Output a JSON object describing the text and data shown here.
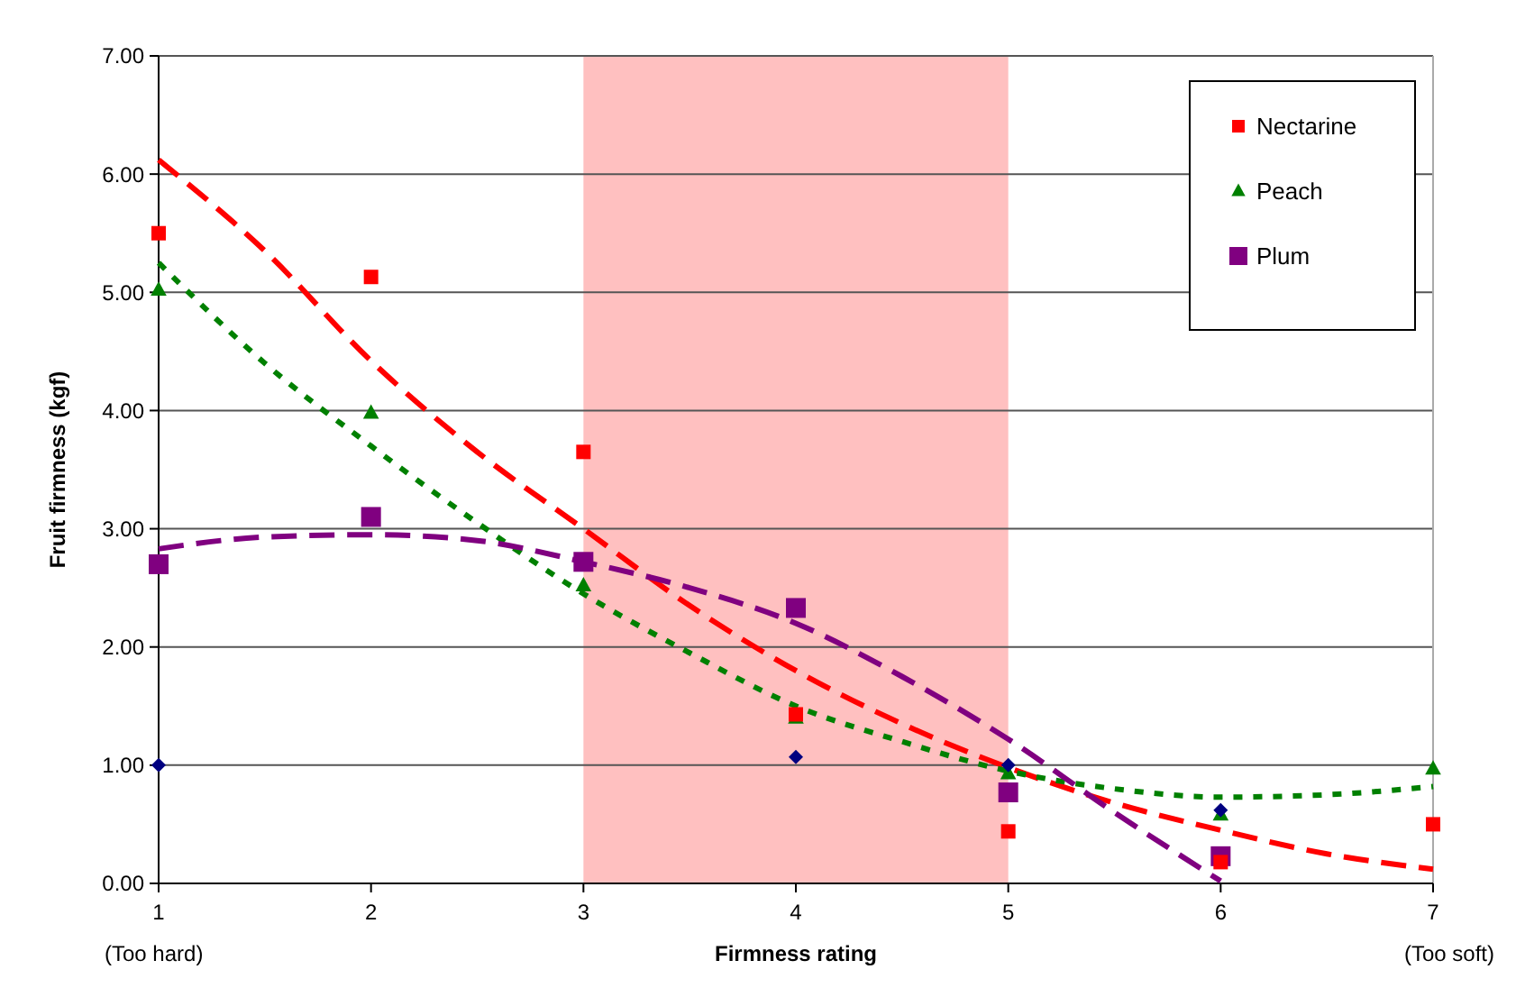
{
  "chart_data": {
    "type": "scatter",
    "xlabel": "Firmness rating",
    "ylabel": "Fruit firmness (kgf)",
    "xlim": [
      1,
      7
    ],
    "ylim": [
      0,
      7
    ],
    "xticks": [
      1,
      2,
      3,
      4,
      5,
      6,
      7
    ],
    "yticks": [
      {
        "value": 0,
        "label": "0.00"
      },
      {
        "value": 1,
        "label": "1.00"
      },
      {
        "value": 2,
        "label": "2.00"
      },
      {
        "value": 3,
        "label": "3.00"
      },
      {
        "value": 4,
        "label": "4.00"
      },
      {
        "value": 5,
        "label": "5.00"
      },
      {
        "value": 6,
        "label": "6.00"
      },
      {
        "value": 7,
        "label": "7.00"
      }
    ],
    "grid": "y",
    "legend": "top right",
    "bands": [
      {
        "axis": "x",
        "from": 3,
        "to": 5,
        "color": "#ffc0c0"
      }
    ],
    "annotations": [
      "(Too hard)",
      "(Too soft)"
    ],
    "series": [
      {
        "type": "line",
        "color": "#ff0000",
        "line_style": "dashed",
        "marker": "none",
        "x": [
          1,
          1.5,
          2,
          2.5,
          3,
          3.5,
          4,
          4.5,
          5,
          5.5,
          6,
          6.5,
          7
        ],
        "values": [
          6.12,
          5.35,
          4.42,
          3.65,
          3.0,
          2.35,
          1.8,
          1.35,
          0.98,
          0.68,
          0.45,
          0.25,
          0.12
        ]
      },
      {
        "type": "line",
        "color": "#008000",
        "line_style": "dotted",
        "marker": "none",
        "x": [
          1,
          1.5,
          2,
          2.5,
          3,
          3.5,
          4,
          4.5,
          5,
          5.5,
          6,
          6.5,
          7
        ],
        "values": [
          5.25,
          4.4,
          3.7,
          3.05,
          2.45,
          1.95,
          1.5,
          1.2,
          0.95,
          0.8,
          0.73,
          0.75,
          0.82
        ]
      },
      {
        "type": "line",
        "color": "#800080",
        "line_style": "dashed",
        "marker": "none",
        "x": [
          1,
          1.5,
          2,
          2.5,
          3,
          3.5,
          4,
          4.5,
          5,
          5.5,
          6
        ],
        "values": [
          2.83,
          2.93,
          2.95,
          2.9,
          2.72,
          2.5,
          2.2,
          1.75,
          1.22,
          0.6,
          0.02
        ]
      },
      {
        "color": "#000080",
        "marker": "diamond",
        "x": [
          1,
          4,
          5,
          6
        ],
        "values": [
          1.0,
          1.07,
          1.0,
          0.62
        ]
      },
      {
        "name": "Nectarine",
        "color": "#ff0000",
        "marker": "square",
        "x": [
          1,
          2,
          3,
          4,
          5,
          6,
          7
        ],
        "values": [
          5.5,
          5.13,
          3.65,
          1.43,
          0.44,
          0.18,
          0.5
        ]
      },
      {
        "name": "Peach",
        "color": "#008000",
        "marker": "triangle",
        "x": [
          1,
          2,
          3,
          4,
          5,
          6,
          7
        ],
        "values": [
          5.02,
          3.98,
          2.52,
          1.4,
          0.93,
          0.58,
          0.97
        ]
      },
      {
        "name": "Plum",
        "color": "#800080",
        "marker": "square",
        "x": [
          1,
          2,
          3,
          4,
          5,
          6
        ],
        "values": [
          2.7,
          3.1,
          2.72,
          2.33,
          0.77,
          0.23
        ]
      }
    ]
  }
}
